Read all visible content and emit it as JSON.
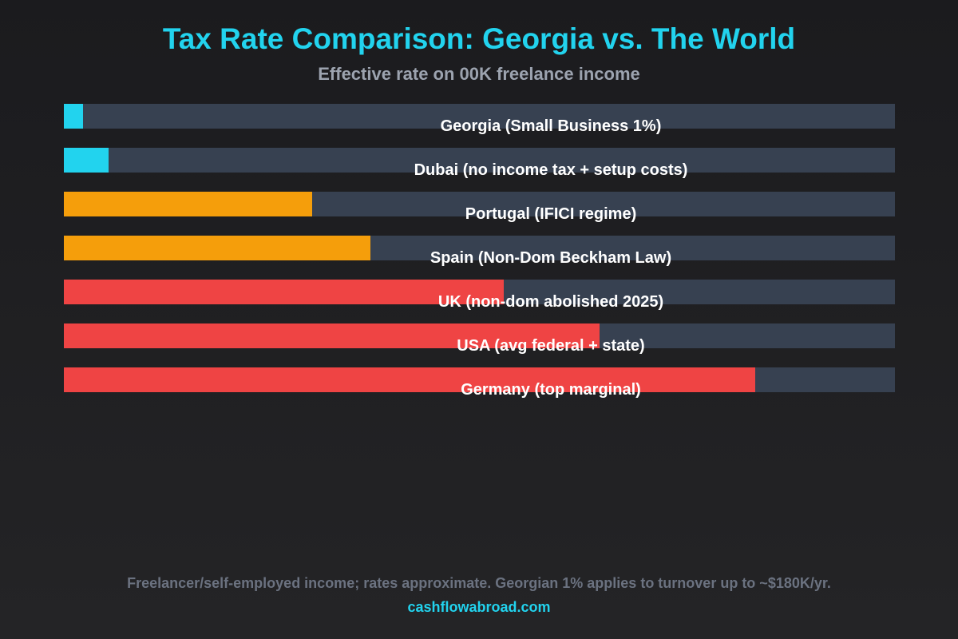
{
  "chart_data": {
    "type": "bar",
    "orientation": "horizontal",
    "title": "Tax Rate Comparison: Georgia vs. The World",
    "subtitle": "Effective rate on 00K freelance income",
    "categories": [
      "Georgia (Small Business 1%)",
      "Dubai (no income tax + setup costs)",
      "Portugal (IFICI regime)",
      "Spain (Non-Dom Beckham Law)",
      "UK (non-dom abolished 2025)",
      "USA (avg federal + state)",
      "Germany (top marginal)"
    ],
    "values_percent_of_track": [
      2.3,
      5.4,
      29.9,
      36.9,
      52.9,
      64.5,
      83.2
    ],
    "colors": [
      "#22d3ee",
      "#22d3ee",
      "#f59e0b",
      "#f59e0b",
      "#ef4444",
      "#ef4444",
      "#ef4444"
    ],
    "track_color": "#374151",
    "grid": false
  },
  "footer": {
    "note": "Freelancer/self-employed income; rates approximate. Georgian 1% applies to turnover up to ~$180K/yr.",
    "site": "cashflowabroad.com"
  }
}
